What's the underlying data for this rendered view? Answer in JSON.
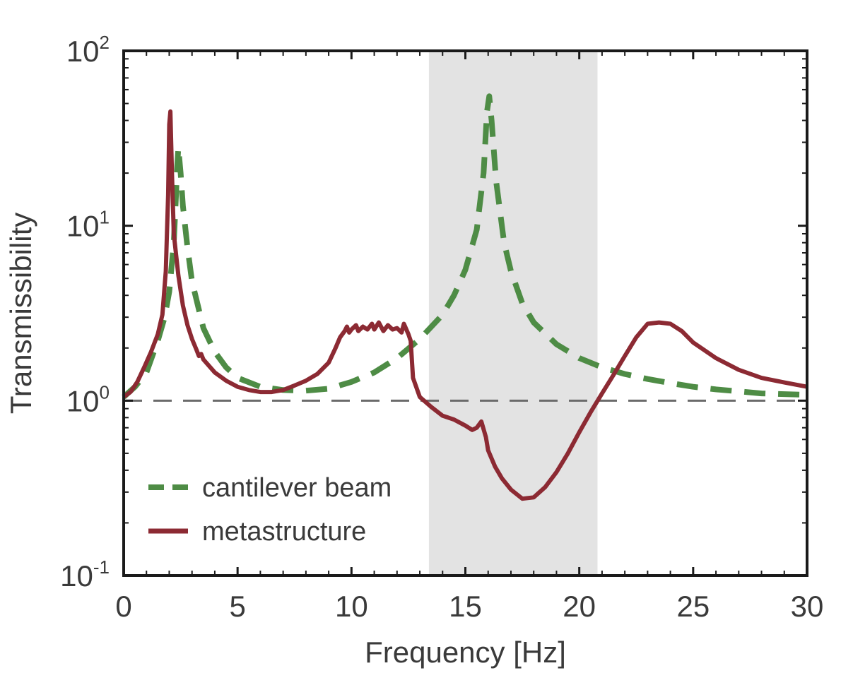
{
  "chart_data": {
    "type": "line",
    "xlabel": "Frequency [Hz]",
    "ylabel": "Transmissibility",
    "xlim": [
      0,
      30
    ],
    "ylim": [
      0.1,
      100
    ],
    "yscale": "log",
    "xticks": [
      0,
      5,
      10,
      15,
      20,
      25,
      30
    ],
    "yticks": [
      {
        "value": 0.1,
        "base": "10",
        "exp": "-1"
      },
      {
        "value": 1,
        "base": "10",
        "exp": "0"
      },
      {
        "value": 10,
        "base": "10",
        "exp": "1"
      },
      {
        "value": 100,
        "base": "10",
        "exp": "2"
      }
    ],
    "grid": false,
    "legend_position": "lower-left",
    "shaded_band": {
      "x_start": 13.4,
      "x_end": 20.8,
      "color": "#e3e3e3"
    },
    "reference_line": {
      "y": 1,
      "style": "dashed",
      "color": "#6b6b6b"
    },
    "series": [
      {
        "name": "cantilever beam",
        "color": "#4e8c45",
        "style": "dashed",
        "points": [
          [
            0,
            1.05
          ],
          [
            0.5,
            1.2
          ],
          [
            1,
            1.45
          ],
          [
            1.5,
            2.2
          ],
          [
            1.8,
            3.0
          ],
          [
            2.0,
            4.2
          ],
          [
            2.2,
            8.0
          ],
          [
            2.3,
            15
          ],
          [
            2.35,
            22
          ],
          [
            2.4,
            28
          ],
          [
            2.5,
            20
          ],
          [
            2.6,
            13
          ],
          [
            2.8,
            7.5
          ],
          [
            3.0,
            4.8
          ],
          [
            3.5,
            2.6
          ],
          [
            4,
            1.9
          ],
          [
            4.5,
            1.55
          ],
          [
            5,
            1.35
          ],
          [
            6,
            1.2
          ],
          [
            7,
            1.15
          ],
          [
            8,
            1.14
          ],
          [
            9,
            1.17
          ],
          [
            10,
            1.28
          ],
          [
            11,
            1.45
          ],
          [
            12,
            1.75
          ],
          [
            13,
            2.25
          ],
          [
            14,
            3.1
          ],
          [
            14.5,
            4.0
          ],
          [
            15,
            5.6
          ],
          [
            15.5,
            9.5
          ],
          [
            15.8,
            20
          ],
          [
            15.95,
            45
          ],
          [
            16.05,
            55
          ],
          [
            16.15,
            40
          ],
          [
            16.35,
            18
          ],
          [
            16.7,
            8
          ],
          [
            17,
            5.5
          ],
          [
            17.5,
            3.6
          ],
          [
            18,
            2.8
          ],
          [
            19,
            2.1
          ],
          [
            20,
            1.75
          ],
          [
            21,
            1.55
          ],
          [
            22,
            1.42
          ],
          [
            23,
            1.33
          ],
          [
            24,
            1.26
          ],
          [
            25,
            1.2
          ],
          [
            26,
            1.16
          ],
          [
            27,
            1.13
          ],
          [
            28,
            1.1
          ],
          [
            29,
            1.09
          ],
          [
            30,
            1.08
          ]
        ]
      },
      {
        "name": "metastructure",
        "color": "#8c2a33",
        "style": "solid",
        "points": [
          [
            0,
            1.05
          ],
          [
            0.3,
            1.12
          ],
          [
            0.6,
            1.28
          ],
          [
            0.9,
            1.55
          ],
          [
            1.2,
            1.9
          ],
          [
            1.5,
            2.4
          ],
          [
            1.7,
            3.1
          ],
          [
            1.85,
            5.5
          ],
          [
            1.95,
            15
          ],
          [
            2.0,
            38
          ],
          [
            2.05,
            45
          ],
          [
            2.12,
            20
          ],
          [
            2.2,
            9
          ],
          [
            2.4,
            5.2
          ],
          [
            2.6,
            3.5
          ],
          [
            2.8,
            2.7
          ],
          [
            3.0,
            2.25
          ],
          [
            3.2,
            1.95
          ],
          [
            3.3,
            1.8
          ],
          [
            3.4,
            1.85
          ],
          [
            3.5,
            1.72
          ],
          [
            4,
            1.45
          ],
          [
            4.5,
            1.3
          ],
          [
            5,
            1.2
          ],
          [
            5.5,
            1.15
          ],
          [
            6,
            1.12
          ],
          [
            6.5,
            1.12
          ],
          [
            7,
            1.15
          ],
          [
            7.5,
            1.22
          ],
          [
            8,
            1.3
          ],
          [
            8.5,
            1.42
          ],
          [
            9,
            1.65
          ],
          [
            9.3,
            2.0
          ],
          [
            9.5,
            2.3
          ],
          [
            9.7,
            2.5
          ],
          [
            9.8,
            2.65
          ],
          [
            9.9,
            2.45
          ],
          [
            10,
            2.55
          ],
          [
            10.2,
            2.7
          ],
          [
            10.3,
            2.5
          ],
          [
            10.5,
            2.65
          ],
          [
            10.7,
            2.55
          ],
          [
            10.9,
            2.75
          ],
          [
            11.0,
            2.55
          ],
          [
            11.2,
            2.8
          ],
          [
            11.4,
            2.5
          ],
          [
            11.6,
            2.7
          ],
          [
            11.8,
            2.55
          ],
          [
            12.0,
            2.6
          ],
          [
            12.2,
            2.45
          ],
          [
            12.3,
            2.75
          ],
          [
            12.5,
            2.4
          ],
          [
            12.6,
            2.2
          ],
          [
            12.7,
            1.35
          ],
          [
            13,
            1.05
          ],
          [
            13.5,
            0.92
          ],
          [
            14,
            0.82
          ],
          [
            14.5,
            0.78
          ],
          [
            15,
            0.72
          ],
          [
            15.3,
            0.68
          ],
          [
            15.5,
            0.7
          ],
          [
            15.7,
            0.76
          ],
          [
            15.9,
            0.62
          ],
          [
            16,
            0.52
          ],
          [
            16.3,
            0.42
          ],
          [
            16.6,
            0.36
          ],
          [
            17,
            0.31
          ],
          [
            17.5,
            0.275
          ],
          [
            18,
            0.28
          ],
          [
            18.5,
            0.32
          ],
          [
            19,
            0.39
          ],
          [
            19.5,
            0.5
          ],
          [
            20,
            0.66
          ],
          [
            20.5,
            0.86
          ],
          [
            21,
            1.1
          ],
          [
            21.5,
            1.4
          ],
          [
            22,
            1.8
          ],
          [
            22.5,
            2.3
          ],
          [
            23,
            2.75
          ],
          [
            23.5,
            2.8
          ],
          [
            24,
            2.75
          ],
          [
            24.5,
            2.5
          ],
          [
            25,
            2.15
          ],
          [
            26,
            1.75
          ],
          [
            27,
            1.5
          ],
          [
            28,
            1.35
          ],
          [
            29,
            1.27
          ],
          [
            30,
            1.2
          ]
        ]
      }
    ]
  }
}
